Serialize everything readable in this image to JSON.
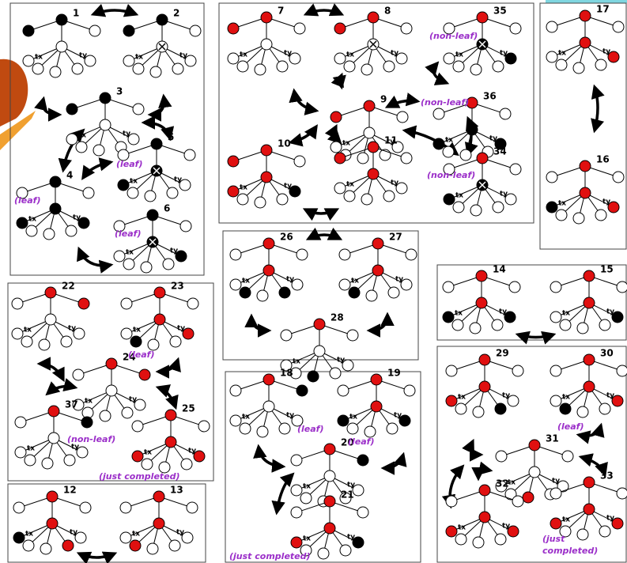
{
  "states": [
    {
      "label": "1",
      "tx": "tx",
      "ty": "ty"
    },
    {
      "label": "2",
      "tx": "tx",
      "ty": "ty"
    },
    {
      "label": "3",
      "tx": "tx",
      "ty": "ty"
    },
    {
      "label": "4",
      "tx": "tx",
      "ty": "ty"
    },
    {
      "label": "5",
      "tx": "tx",
      "ty": "ty"
    },
    {
      "label": "6",
      "tx": "tx",
      "ty": "ty"
    },
    {
      "label": "7",
      "tx": "tx",
      "ty": "ty"
    },
    {
      "label": "8",
      "tx": "tx",
      "ty": "ty"
    },
    {
      "label": "35",
      "tx": "tx",
      "ty": "ty"
    },
    {
      "label": "9",
      "tx": "tx",
      "ty": "ty"
    },
    {
      "label": "36",
      "tx": "tx",
      "ty": "ty"
    },
    {
      "label": "10",
      "tx": "tx",
      "ty": "ty"
    },
    {
      "label": "11",
      "tx": "tx",
      "ty": "ty"
    },
    {
      "label": "34",
      "tx": "tx",
      "ty": "ty"
    },
    {
      "label": "17",
      "tx": "tx",
      "ty": "ty"
    },
    {
      "label": "16",
      "tx": "tx",
      "ty": "ty"
    },
    {
      "label": "26",
      "tx": "tx",
      "ty": "ty"
    },
    {
      "label": "27",
      "tx": "tx",
      "ty": "ty"
    },
    {
      "label": "28",
      "tx": "tx",
      "ty": "ty"
    },
    {
      "label": "14",
      "tx": "tx",
      "ty": "ty"
    },
    {
      "label": "15",
      "tx": "tx",
      "ty": "ty"
    },
    {
      "label": "22",
      "tx": "tx",
      "ty": "ty"
    },
    {
      "label": "23",
      "tx": "tx",
      "ty": "ty"
    },
    {
      "label": "24",
      "tx": "tx",
      "ty": "ty"
    },
    {
      "label": "37",
      "tx": "tx",
      "ty": "ty"
    },
    {
      "label": "25",
      "tx": "tx",
      "ty": "ty"
    },
    {
      "label": "18",
      "tx": "tx",
      "ty": "ty"
    },
    {
      "label": "19",
      "tx": "tx",
      "ty": "ty"
    },
    {
      "label": "20",
      "tx": "tx",
      "ty": "ty"
    },
    {
      "label": "21",
      "tx": "tx",
      "ty": "ty"
    },
    {
      "label": "29",
      "tx": "tx",
      "ty": "ty"
    },
    {
      "label": "30",
      "tx": "tx",
      "ty": "ty"
    },
    {
      "label": "31",
      "tx": "tx",
      "ty": "ty"
    },
    {
      "label": "32",
      "tx": "tx",
      "ty": "ty"
    },
    {
      "label": "33",
      "tx": "tx",
      "ty": "ty"
    },
    {
      "label": "12",
      "tx": "tx",
      "ty": "ty"
    },
    {
      "label": "13",
      "tx": "tx",
      "ty": "ty"
    }
  ],
  "annotations": [
    "(leaf)",
    "(leaf)",
    "(leaf)",
    "(non-leaf)",
    "(non-leaf)",
    "(non-leaf)",
    "(leaf)",
    "(non-leaf)",
    "(just completed)",
    "(leaf)",
    "(leaf)",
    "(just completed)",
    "(leaf)",
    "(just",
    "completed)"
  ]
}
